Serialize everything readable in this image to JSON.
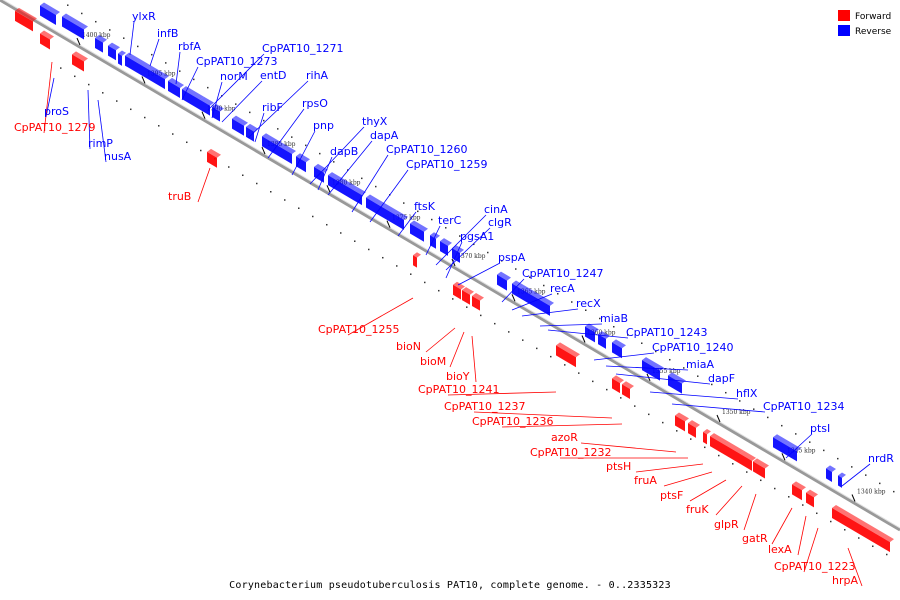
{
  "caption": "Corynebacterium pseudotuberculosis PAT10, complete genome. - 0..2335323",
  "legend": [
    {
      "label": "Forward",
      "color": "#ff0000"
    },
    {
      "label": "Reverse",
      "color": "#0000ff"
    }
  ],
  "colors": {
    "forward": "#ff0000",
    "reverse": "#0000ff",
    "axis": "#888888"
  },
  "ticks": [
    "1400 kbp",
    "1395 kbp",
    "1390 kbp",
    "1385 kbp",
    "1380 kbp",
    "1375 kbp",
    "1370 kbp",
    "1365 kbp",
    "1360 kbp",
    "1355 kbp",
    "1350 kbp",
    "1345 kbp",
    "1340 kbp"
  ],
  "genes_reverse": [
    "ylxR",
    "infB",
    "rbfA",
    "CpPAT10_1273",
    "CpPAT10_1271",
    "norM",
    "entD",
    "rihA",
    "ribF",
    "rpsO",
    "pnp",
    "thyX",
    "dapA",
    "dapB",
    "CpPAT10_1260",
    "CpPAT10_1259",
    "ftsK",
    "terC",
    "cinA",
    "clgR",
    "pgsA1",
    "pspA",
    "CpPAT10_1247",
    "recA",
    "recX",
    "miaB",
    "CpPAT10_1243",
    "CpPAT10_1240",
    "miaA",
    "dapF",
    "hflX",
    "CpPAT10_1234",
    "ptsI",
    "nrdR",
    "proS",
    "rimP",
    "nusA"
  ],
  "genes_forward": [
    "CpPAT10_1279",
    "truB",
    "CpPAT10_1255",
    "bioN",
    "bioM",
    "bioY",
    "CpPAT10_1241",
    "CpPAT10_1237",
    "CpPAT10_1236",
    "azoR",
    "CpPAT10_1232",
    "ptsH",
    "fruA",
    "ptsF",
    "fruK",
    "glpR",
    "gatR",
    "lexA",
    "CpPAT10_1223",
    "hrpA"
  ]
}
